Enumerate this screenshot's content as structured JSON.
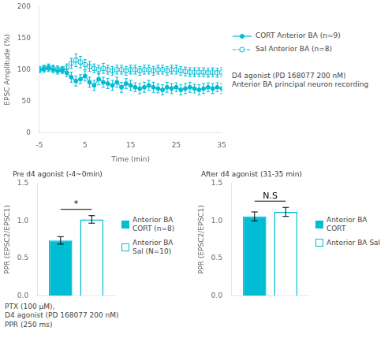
{
  "chart_data": [
    {
      "type": "line",
      "xlabel": "Time (min)",
      "ylabel": "EPSC Amplitude (%)",
      "xlim": [
        -5,
        35
      ],
      "xticks": [
        -5,
        5,
        15,
        25,
        35
      ],
      "ylim": [
        0,
        200
      ],
      "yticks": [
        0,
        50,
        100,
        150,
        200
      ],
      "grid": false,
      "x": [
        -5,
        -4,
        -3,
        -2,
        -1,
        0,
        1,
        2,
        3,
        4,
        5,
        6,
        7,
        8,
        9,
        10,
        11,
        12,
        13,
        14,
        15,
        16,
        17,
        18,
        19,
        20,
        21,
        22,
        23,
        24,
        25,
        26,
        27,
        28,
        29,
        30,
        31,
        32,
        33,
        34,
        35
      ],
      "series": [
        {
          "name": "CORT Anterior BA (n=9)",
          "color": "#00bcd4",
          "marker": "circle",
          "line_style": "solid",
          "values": [
            100,
            101,
            103,
            100,
            98,
            99,
            95,
            88,
            82,
            85,
            90,
            80,
            75,
            85,
            80,
            78,
            75,
            80,
            72,
            78,
            75,
            72,
            70,
            72,
            75,
            72,
            70,
            68,
            72,
            70,
            72,
            68,
            70,
            72,
            70,
            68,
            70,
            72,
            70,
            72,
            70
          ],
          "errors": [
            5,
            5,
            6,
            5,
            5,
            5,
            6,
            8,
            8,
            7,
            8,
            8,
            8,
            9,
            8,
            8,
            8,
            8,
            8,
            8,
            8,
            7,
            8,
            8,
            8,
            8,
            7,
            8,
            8,
            8,
            7,
            8,
            8,
            8,
            7,
            8,
            8,
            7,
            8,
            7,
            8
          ]
        },
        {
          "name": "Sal Anterior BA (n=8)",
          "color": "#00bcd4",
          "marker": "open_circle",
          "line_style": "dashed",
          "values": [
            100,
            102,
            103,
            102,
            101,
            100,
            103,
            110,
            115,
            112,
            108,
            105,
            102,
            100,
            102,
            100,
            98,
            100,
            100,
            98,
            100,
            100,
            98,
            100,
            100,
            98,
            100,
            100,
            98,
            100,
            100,
            98,
            97,
            96,
            96,
            96,
            96,
            95,
            96,
            95,
            96
          ],
          "errors": [
            5,
            5,
            5,
            5,
            5,
            5,
            6,
            8,
            10,
            9,
            8,
            8,
            7,
            7,
            8,
            7,
            7,
            7,
            7,
            7,
            7,
            7,
            7,
            7,
            7,
            7,
            7,
            7,
            7,
            7,
            7,
            7,
            7,
            7,
            7,
            7,
            7,
            7,
            7,
            7,
            7
          ]
        }
      ],
      "annotation": "D4 agonist (PD 168077 200 nM)\nAnterior BA principal neuron recording"
    },
    {
      "type": "bar",
      "title": "Pre d4 agonist (-4~0min)",
      "ylabel": "PPR (EPSC2/EPSC1)",
      "ylim": [
        0,
        1.5
      ],
      "yticks": [
        {
          "value": 0,
          "label": "0.0"
        },
        0.5,
        {
          "value": 1,
          "label": "1.0"
        },
        1.5
      ],
      "grid": false,
      "color": "#00bcd4",
      "categories": [
        null
      ],
      "series": [
        {
          "name": "Anterior BA\nCORT (n=8)",
          "color": "#00bcd4",
          "values": [
            0.74
          ],
          "errors": [
            0.05
          ]
        },
        {
          "name": "Anterior BA\nSal (N=10)",
          "color": "#ffffff",
          "values": [
            1.02
          ],
          "errors": [
            0.05
          ]
        }
      ],
      "annotation": "*",
      "note": "PTX (100 μM),\nD4 agonist (PD 168077 200 nM)\nPPR (250 ms)"
    },
    {
      "type": "bar",
      "title": "After d4 agonist (31-35 min)",
      "ylabel": "PPR (EPSC2/EPSC1)",
      "ylim": [
        0,
        1.5
      ],
      "yticks": [
        {
          "value": 0,
          "label": "0.0"
        },
        0.5,
        {
          "value": 1,
          "label": "1.0"
        },
        1.5
      ],
      "grid": false,
      "color": "#00bcd4",
      "categories": [
        null
      ],
      "series": [
        {
          "name": "Anterior BA\nCORT",
          "color": "#00bcd4",
          "values": [
            1.06
          ],
          "errors": [
            0.06
          ]
        },
        {
          "name": "Anterior BA Sal",
          "color": "#ffffff",
          "values": [
            1.12
          ],
          "errors": [
            0.06
          ]
        }
      ],
      "annotation": "N.S"
    }
  ]
}
